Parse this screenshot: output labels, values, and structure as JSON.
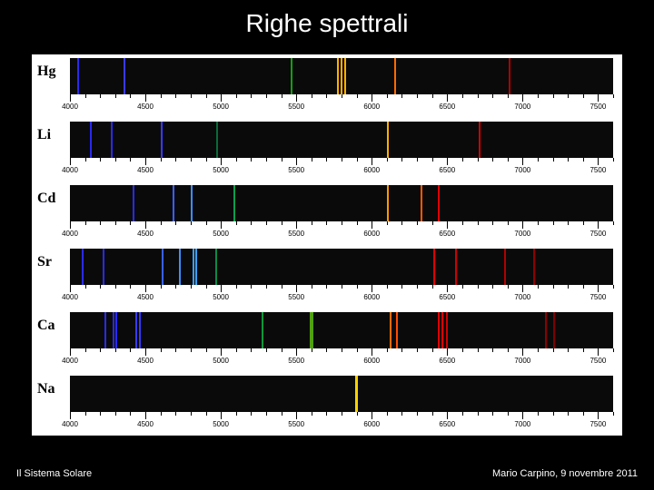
{
  "title": "Righe spettrali",
  "footer_left": "Il Sistema Solare",
  "footer_right": "Mario Carpino, 9 novembre 2011",
  "figure": {
    "background": "#ffffff",
    "spectrum_bg": "#0a0a0a",
    "label_font": "Times New Roman",
    "label_fontsize": 16,
    "axis_fontsize": 8,
    "axis_color": "#000000",
    "xmin": 4000,
    "xmax": 7600,
    "x_major_step": 500,
    "x_minor_step": 100,
    "line_width": 2,
    "elements": [
      {
        "label": "Hg",
        "lines": [
          {
            "wavelength": 4047,
            "color": "#2a2aee"
          },
          {
            "wavelength": 4358,
            "color": "#3a3aff"
          },
          {
            "wavelength": 5461,
            "color": "#10a010"
          },
          {
            "wavelength": 5770,
            "color": "#ffb000"
          },
          {
            "wavelength": 5791,
            "color": "#ffb000"
          },
          {
            "wavelength": 5820,
            "color": "#ffb000"
          },
          {
            "wavelength": 6150,
            "color": "#ff6a00"
          },
          {
            "wavelength": 6910,
            "color": "#b00000"
          }
        ]
      },
      {
        "label": "Li",
        "lines": [
          {
            "wavelength": 4132,
            "color": "#2a2aee"
          },
          {
            "wavelength": 4273,
            "color": "#2a2aee"
          },
          {
            "wavelength": 4603,
            "color": "#3a3aff"
          },
          {
            "wavelength": 4972,
            "color": "#0a6a3a"
          },
          {
            "wavelength": 6104,
            "color": "#ffb000"
          },
          {
            "wavelength": 6708,
            "color": "#d00000"
          }
        ]
      },
      {
        "label": "Cd",
        "lines": [
          {
            "wavelength": 4413,
            "color": "#2a2aee"
          },
          {
            "wavelength": 4678,
            "color": "#3a60ff"
          },
          {
            "wavelength": 4800,
            "color": "#3a90ff"
          },
          {
            "wavelength": 5086,
            "color": "#0aa050"
          },
          {
            "wavelength": 6099,
            "color": "#ff9a00"
          },
          {
            "wavelength": 6325,
            "color": "#ff5a00"
          },
          {
            "wavelength": 6438,
            "color": "#e00000"
          }
        ]
      },
      {
        "label": "Sr",
        "lines": [
          {
            "wavelength": 4078,
            "color": "#2a2aee"
          },
          {
            "wavelength": 4216,
            "color": "#2a2aee"
          },
          {
            "wavelength": 4607,
            "color": "#3a60ff"
          },
          {
            "wavelength": 4722,
            "color": "#3a90ff"
          },
          {
            "wavelength": 4811,
            "color": "#3aa0ff"
          },
          {
            "wavelength": 4832,
            "color": "#3aa0ff"
          },
          {
            "wavelength": 4962,
            "color": "#0a8a4a"
          },
          {
            "wavelength": 6408,
            "color": "#e00000"
          },
          {
            "wavelength": 6550,
            "color": "#d00000"
          },
          {
            "wavelength": 6878,
            "color": "#b00000"
          },
          {
            "wavelength": 7070,
            "color": "#900000"
          }
        ]
      },
      {
        "label": "Ca",
        "lines": [
          {
            "wavelength": 4227,
            "color": "#2a2aee"
          },
          {
            "wavelength": 4283,
            "color": "#2a2aee"
          },
          {
            "wavelength": 4303,
            "color": "#2a2aee"
          },
          {
            "wavelength": 4435,
            "color": "#3a3aff"
          },
          {
            "wavelength": 4455,
            "color": "#3a3aff"
          },
          {
            "wavelength": 5270,
            "color": "#0a9a3a"
          },
          {
            "wavelength": 5590,
            "color": "#50a010"
          },
          {
            "wavelength": 5602,
            "color": "#50a010"
          },
          {
            "wavelength": 6122,
            "color": "#ff6a00"
          },
          {
            "wavelength": 6162,
            "color": "#ff4a00"
          },
          {
            "wavelength": 6439,
            "color": "#e00000"
          },
          {
            "wavelength": 6463,
            "color": "#e00000"
          },
          {
            "wavelength": 6494,
            "color": "#d00000"
          },
          {
            "wavelength": 7148,
            "color": "#900000"
          },
          {
            "wavelength": 7202,
            "color": "#800000"
          }
        ]
      },
      {
        "label": "Na",
        "lines": [
          {
            "wavelength": 5890,
            "color": "#ffd000"
          },
          {
            "wavelength": 5896,
            "color": "#ffd000"
          }
        ]
      }
    ]
  }
}
